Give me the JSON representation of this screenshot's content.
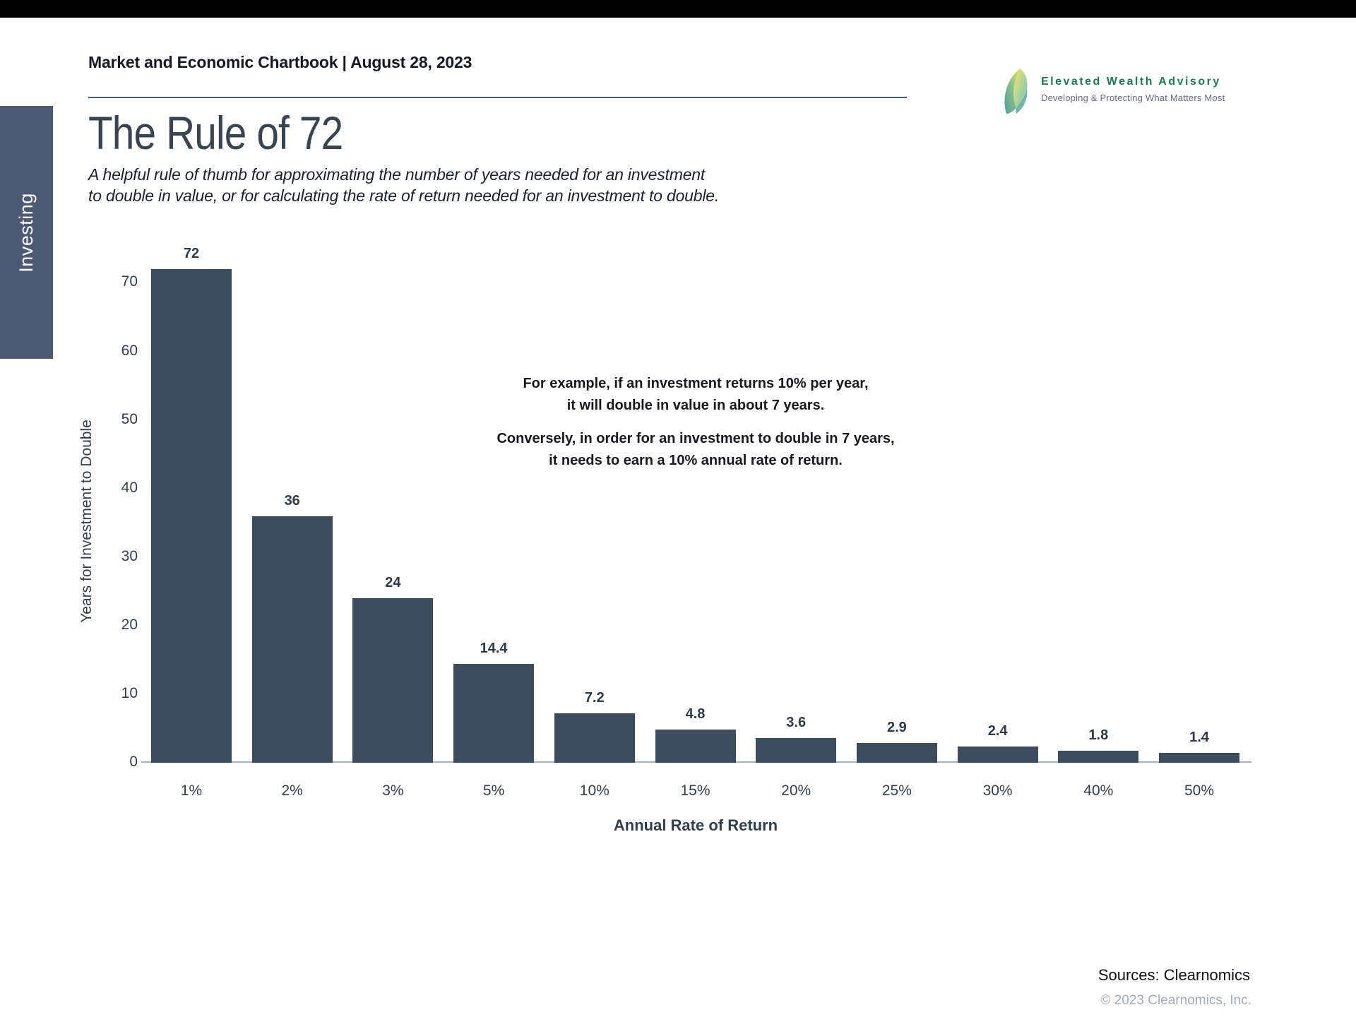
{
  "header": {
    "chartbook_title": "Market and Economic Chartbook | August 28, 2023",
    "logo": {
      "icon": "leaf-swoosh-logo-icon",
      "brand": "Elevated Wealth Advisory",
      "tagline": "Developing & Protecting What Matters Most",
      "brand_color": "#1e7a50"
    }
  },
  "sidebar": {
    "tab_label": "Investing",
    "tab_color": "#4b5a71"
  },
  "page": {
    "title": "The Rule of 72",
    "subtitle_line1": "A helpful rule of thumb for approximating the number of years needed for an investment",
    "subtitle_line2": "to double in value, or for calculating the rate of return needed for an investment to double."
  },
  "annotation": {
    "para1_line1": "For example, if an investment returns 10% per year,",
    "para1_line2": "it will double in value in about 7 years.",
    "para2_line1": "Conversely, in order for an investment to double in 7 years,",
    "para2_line2": "it needs to earn a 10% annual rate of return."
  },
  "chart_data": {
    "type": "bar",
    "categories": [
      "1%",
      "2%",
      "3%",
      "5%",
      "10%",
      "15%",
      "20%",
      "25%",
      "30%",
      "40%",
      "50%"
    ],
    "values": [
      72,
      36,
      24,
      14.4,
      7.2,
      4.8,
      3.6,
      2.9,
      2.4,
      1.8,
      1.4
    ],
    "title": "The Rule of 72",
    "xlabel": "Annual Rate of Return",
    "ylabel": "Years for Investment to Double",
    "yticks": [
      0,
      10,
      20,
      30,
      40,
      50,
      60,
      70
    ],
    "ylim": [
      0,
      75
    ],
    "grid": false,
    "legend": null,
    "bar_color": "#3d4c5d",
    "axis_line_color": "#a8b3bd"
  },
  "footer": {
    "sources": "Sources: Clearnomics",
    "copyright": "© 2023 Clearnomics, Inc."
  }
}
